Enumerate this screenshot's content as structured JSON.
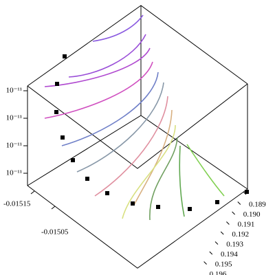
{
  "chart_data": {
    "type": "line3d",
    "zticks": [
      {
        "value": 8e-11,
        "label": "10⁻¹¹"
      },
      {
        "value": 6e-11,
        "label": "10⁻¹¹"
      },
      {
        "value": 4e-11,
        "label": "10⁻¹¹"
      },
      {
        "value": 2e-11,
        "label": "10⁻¹¹"
      }
    ],
    "xticks": [
      -0.01515,
      -0.01505
    ],
    "yticks": [
      0.189,
      0.19,
      0.191,
      0.192,
      0.193,
      0.194,
      0.195,
      0.196
    ]
  }
}
